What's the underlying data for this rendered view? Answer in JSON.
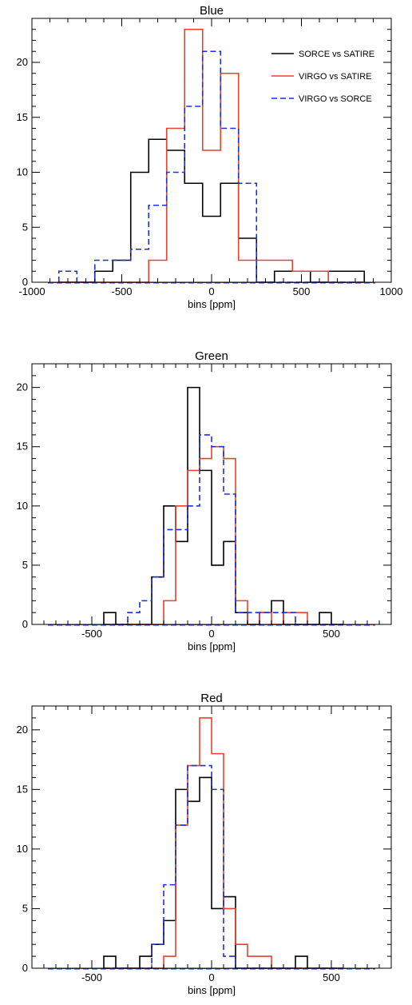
{
  "chart_data": [
    {
      "type": "histogram",
      "title": "Blue",
      "xlabel": "bins [ppm]",
      "xlim": [
        -1000,
        1000
      ],
      "ylim": [
        0,
        24
      ],
      "bin_width": 100,
      "x_ticks": [
        -1000,
        -500,
        0,
        500,
        1000
      ],
      "y_ticks": [
        0,
        5,
        10,
        15,
        20
      ],
      "legend": {
        "position": "top-right"
      },
      "series": [
        {
          "name": "SORCE vs SATIRE",
          "color": "#000000",
          "dash": "solid",
          "bin_starts": [
            -850,
            -750,
            -650,
            -550,
            -450,
            -350,
            -250,
            -150,
            -50,
            50,
            150,
            250,
            350,
            450,
            550,
            650,
            750
          ],
          "values": [
            0,
            0,
            1,
            2,
            10,
            13,
            12,
            9,
            6,
            9,
            4,
            0,
            1,
            1,
            0,
            1,
            1
          ]
        },
        {
          "name": "VIRGO vs SATIRE",
          "color": "#e8422c",
          "dash": "solid",
          "bin_starts": [
            -850,
            -750,
            -650,
            -550,
            -450,
            -350,
            -250,
            -150,
            -50,
            50,
            150,
            250,
            350,
            450,
            550,
            650,
            750
          ],
          "values": [
            0,
            0,
            0,
            0,
            0,
            2,
            14,
            23,
            12,
            19,
            2,
            2,
            2,
            1,
            1,
            0,
            0
          ]
        },
        {
          "name": "VIRGO vs SORCE",
          "color": "#1a2fe0",
          "dash": "dashed",
          "bin_starts": [
            -850,
            -750,
            -650,
            -550,
            -450,
            -350,
            -250,
            -150,
            -50,
            50,
            150,
            250,
            350,
            450,
            550,
            650,
            750
          ],
          "values": [
            1,
            0,
            2,
            2,
            3,
            7,
            10,
            16,
            21,
            14,
            9,
            0,
            0,
            0,
            0,
            0,
            0
          ]
        }
      ]
    },
    {
      "type": "histogram",
      "title": "Green",
      "xlabel": "bins [ppm]",
      "xlim": [
        -750,
        750
      ],
      "ylim": [
        0,
        22
      ],
      "bin_width": 50,
      "x_ticks": [
        -500,
        0,
        500
      ],
      "y_ticks": [
        0,
        5,
        10,
        15,
        20
      ],
      "series": [
        {
          "name": "SORCE vs SATIRE",
          "color": "#000000",
          "dash": "solid",
          "bin_starts": [
            -450,
            -400,
            -350,
            -300,
            -250,
            -200,
            -150,
            -100,
            -50,
            0,
            50,
            100,
            150,
            200,
            250,
            300,
            350,
            400,
            450,
            500
          ],
          "values": [
            1,
            0,
            0,
            0,
            4,
            10,
            7,
            20,
            13,
            5,
            7,
            1,
            0,
            1,
            2,
            0,
            0,
            0,
            1,
            0
          ]
        },
        {
          "name": "VIRGO vs SATIRE",
          "color": "#e8422c",
          "dash": "solid",
          "bin_starts": [
            -450,
            -400,
            -350,
            -300,
            -250,
            -200,
            -150,
            -100,
            -50,
            0,
            50,
            100,
            150,
            200,
            250,
            300,
            350,
            400,
            450,
            500
          ],
          "values": [
            0,
            0,
            0,
            0,
            0,
            2,
            10,
            13,
            14,
            15,
            14,
            2,
            0,
            1,
            0,
            1,
            1,
            0,
            0,
            0
          ]
        },
        {
          "name": "VIRGO vs SORCE",
          "color": "#1a2fe0",
          "dash": "dashed",
          "bin_starts": [
            -450,
            -400,
            -350,
            -300,
            -250,
            -200,
            -150,
            -100,
            -50,
            0,
            50,
            100,
            150,
            200,
            250,
            300,
            350,
            400,
            450,
            500
          ],
          "values": [
            0,
            0,
            1,
            2,
            4,
            8,
            8,
            10,
            16,
            15,
            11,
            1,
            1,
            1,
            1,
            1,
            0,
            0,
            0,
            0
          ]
        }
      ]
    },
    {
      "type": "histogram",
      "title": "Red",
      "xlabel": "bins [ppm]",
      "xlim": [
        -750,
        750
      ],
      "ylim": [
        0,
        22
      ],
      "bin_width": 50,
      "x_ticks": [
        -500,
        0,
        500
      ],
      "y_ticks": [
        0,
        5,
        10,
        15,
        20
      ],
      "series": [
        {
          "name": "SORCE vs SATIRE",
          "color": "#000000",
          "dash": "solid",
          "bin_starts": [
            -450,
            -400,
            -350,
            -300,
            -250,
            -200,
            -150,
            -100,
            -50,
            0,
            50,
            100,
            150,
            200,
            250,
            300,
            350,
            400,
            450,
            500
          ],
          "values": [
            1,
            0,
            0,
            1,
            2,
            4,
            15,
            14,
            16,
            5,
            6,
            0,
            0,
            0,
            0,
            0,
            1,
            0,
            0,
            0
          ]
        },
        {
          "name": "VIRGO vs SATIRE",
          "color": "#e8422c",
          "dash": "solid",
          "bin_starts": [
            -450,
            -400,
            -350,
            -300,
            -250,
            -200,
            -150,
            -100,
            -50,
            0,
            50,
            100,
            150,
            200,
            250,
            300,
            350,
            400,
            450,
            500
          ],
          "values": [
            0,
            0,
            0,
            0,
            0,
            1,
            12,
            17,
            21,
            18,
            5,
            2,
            1,
            1,
            0,
            0,
            0,
            0,
            0,
            0
          ]
        },
        {
          "name": "VIRGO vs SORCE",
          "color": "#1a2fe0",
          "dash": "dashed",
          "bin_starts": [
            -450,
            -400,
            -350,
            -300,
            -250,
            -200,
            -150,
            -100,
            -50,
            0,
            50,
            100,
            150,
            200,
            250,
            300,
            350,
            400,
            450,
            500
          ],
          "values": [
            0,
            0,
            0,
            0,
            2,
            7,
            12,
            17,
            17,
            15,
            1,
            0,
            0,
            0,
            0,
            0,
            0,
            0,
            0,
            0
          ]
        }
      ]
    }
  ]
}
